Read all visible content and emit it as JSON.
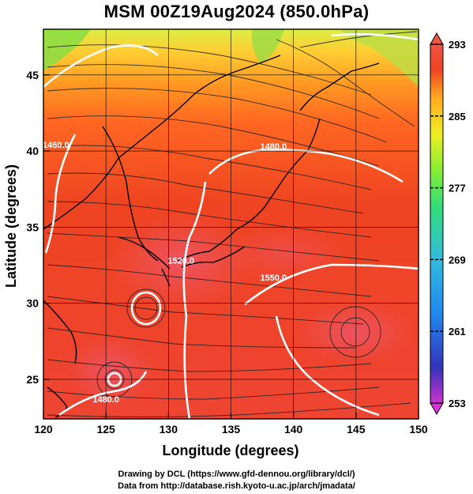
{
  "title": "MSM 00Z19Aug2024 (850.0hPa)",
  "map": {
    "xlabel": "Longitude (degrees)",
    "ylabel": "Latitude  (degrees)",
    "xlim": [
      120,
      150
    ],
    "ylim": [
      22.4,
      48
    ],
    "xticks": [
      120,
      125,
      130,
      135,
      140,
      145,
      150
    ],
    "yticks": [
      25,
      30,
      35,
      40,
      45
    ],
    "grid": true,
    "field": "temperature (K)",
    "overlay": "streamlines",
    "contour_labels": [
      {
        "text": "1460.0",
        "lon": 121.0,
        "lat": 40.2
      },
      {
        "text": "1480.0",
        "lon": 138.4,
        "lat": 40.1
      },
      {
        "text": "1520.0",
        "lon": 131.0,
        "lat": 32.6
      },
      {
        "text": "1550.0",
        "lon": 138.4,
        "lat": 31.5
      },
      {
        "text": "1480.0",
        "lon": 125.0,
        "lat": 23.5
      }
    ]
  },
  "colorbar": {
    "vmin": 253,
    "vmax": 293,
    "tick_labels": [
      "293",
      "285",
      "277",
      "269",
      "261",
      "253"
    ],
    "tick_values": [
      293,
      285,
      277,
      269,
      261,
      253
    ],
    "colors": [
      "#cc33cc",
      "#3333bb",
      "#2288ee",
      "#33bbdd",
      "#33dd77",
      "#88ee33",
      "#eeee22",
      "#ffaa22",
      "#ee4422",
      "#ee5544"
    ]
  },
  "credits": {
    "line1": "Drawing by DCL (https://www.gfd-dennou.org/library/dcl/)",
    "line2": "Data from http://database.rish.kyoto-u.ac.jp/arch/jmadata/"
  }
}
